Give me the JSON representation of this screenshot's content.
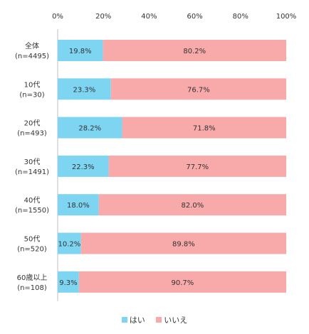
{
  "chart_data": {
    "type": "bar",
    "orientation": "horizontal",
    "stacked": "percent",
    "title": "",
    "xlabel": "",
    "ylabel": "",
    "xlim": [
      0,
      100
    ],
    "x_ticks": [
      "0%",
      "20%",
      "40%",
      "60%",
      "80%",
      "100%"
    ],
    "x_axis_position": "top",
    "grid": false,
    "legend_position": "bottom",
    "categories": [
      {
        "label": "全体",
        "n": "(n=4495)"
      },
      {
        "label": "10代",
        "n": "(n=30)"
      },
      {
        "label": "20代",
        "n": "(n=493)"
      },
      {
        "label": "30代",
        "n": "(n=1491)"
      },
      {
        "label": "40代",
        "n": "(n=1550)"
      },
      {
        "label": "50代",
        "n": "(n=520)"
      },
      {
        "label": "60歳以上",
        "n": "(n=108)"
      }
    ],
    "series": [
      {
        "name": "はい",
        "color": "#7DD5F2",
        "values": [
          19.8,
          23.3,
          28.2,
          22.3,
          18.0,
          10.2,
          9.3
        ],
        "labels": [
          "19.8%",
          "23.3%",
          "28.2%",
          "22.3%",
          "18.0%",
          "10.2%",
          "9.3%"
        ]
      },
      {
        "name": "いいえ",
        "color": "#F8A9A9",
        "values": [
          80.2,
          76.7,
          71.8,
          77.7,
          82.0,
          89.8,
          90.7
        ],
        "labels": [
          "80.2%",
          "76.7%",
          "71.8%",
          "77.7%",
          "82.0%",
          "89.8%",
          "90.7%"
        ]
      }
    ]
  }
}
